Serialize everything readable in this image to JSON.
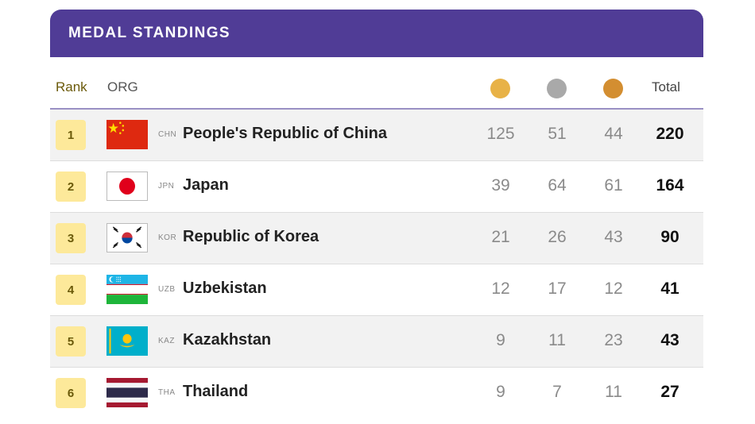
{
  "header": {
    "title": "MEDAL STANDINGS"
  },
  "columns": {
    "rank": "Rank",
    "org": "ORG",
    "total": "Total",
    "medal_colors": {
      "gold": "#e8b247",
      "silver": "#a9a9a9",
      "bronze": "#d38e31"
    }
  },
  "rows": [
    {
      "rank": "1",
      "code": "CHN",
      "country": "People's Republic of China",
      "gold": "125",
      "silver": "51",
      "bronze": "44",
      "total": "220",
      "flag": "china-flag-icon"
    },
    {
      "rank": "2",
      "code": "JPN",
      "country": "Japan",
      "gold": "39",
      "silver": "64",
      "bronze": "61",
      "total": "164",
      "flag": "japan-flag-icon"
    },
    {
      "rank": "3",
      "code": "KOR",
      "country": "Republic of Korea",
      "gold": "21",
      "silver": "26",
      "bronze": "43",
      "total": "90",
      "flag": "korea-flag-icon"
    },
    {
      "rank": "4",
      "code": "UZB",
      "country": "Uzbekistan",
      "gold": "12",
      "silver": "17",
      "bronze": "12",
      "total": "41",
      "flag": "uzbekistan-flag-icon"
    },
    {
      "rank": "5",
      "code": "KAZ",
      "country": "Kazakhstan",
      "gold": "9",
      "silver": "11",
      "bronze": "23",
      "total": "43",
      "flag": "kazakhstan-flag-icon"
    },
    {
      "rank": "6",
      "code": "THA",
      "country": "Thailand",
      "gold": "9",
      "silver": "7",
      "bronze": "11",
      "total": "27",
      "flag": "thailand-flag-icon"
    }
  ]
}
